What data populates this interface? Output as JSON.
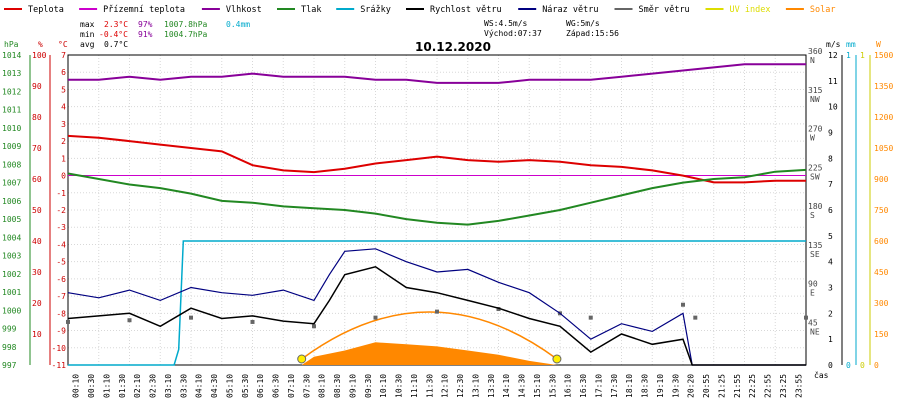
{
  "title": "10.12.2020",
  "legend": [
    {
      "label": "Teplota",
      "color": "#dd0000"
    },
    {
      "label": "Přízemní teplota",
      "color": "#cc00cc"
    },
    {
      "label": "Vlhkost",
      "color": "#880099"
    },
    {
      "label": "Tlak",
      "color": "#228822"
    },
    {
      "label": "Srážky",
      "color": "#00aacc"
    },
    {
      "label": "Rychlost větru",
      "color": "#000000"
    },
    {
      "label": "Náraz větru",
      "color": "#000080"
    },
    {
      "label": "Směr větru",
      "color": "#666666"
    },
    {
      "label": "UV index",
      "color": "#dddd00"
    },
    {
      "label": "Solar",
      "color": "#ff8800"
    }
  ],
  "stats": {
    "max_label": "max",
    "max_temp": "2.3°C",
    "max_hum": "97%",
    "max_press": "1007.8hPa",
    "max_rain": "0.4mm",
    "min_label": "min",
    "min_temp": "-0.4°C",
    "min_hum": "91%",
    "min_press": "1004.7hPa",
    "avg_label": "avg",
    "avg_temp": "0.7°C"
  },
  "wind_info": {
    "ws": "WS:4.5m/s",
    "wg": "WG:5m/s",
    "sunrise": "Východ:07:37",
    "sunset": "Západ:15:56"
  },
  "units": {
    "hpa": "hPa",
    "pct": "%",
    "degc": "°C",
    "ms": "m/s",
    "mm": "mm",
    "w": "W",
    "time": "čas"
  },
  "axes": {
    "hpa_ticks": [
      "1014",
      "1013",
      "1012",
      "1011",
      "1010",
      "1009",
      "1008",
      "1007",
      "1006",
      "1005",
      "1004",
      "1003",
      "1002",
      "1001",
      "1000",
      "999",
      "998",
      "997"
    ],
    "pct_ticks": [
      "100",
      "90",
      "80",
      "70",
      "60",
      "50",
      "40",
      "30",
      "20",
      "10"
    ],
    "degc_ticks": [
      "7",
      "6",
      "5",
      "4",
      "3",
      "2",
      "1",
      "0",
      "-1",
      "-2",
      "-3",
      "-4",
      "-5",
      "-6",
      "-7",
      "-8",
      "-9",
      "-10",
      "-11"
    ],
    "dir_ticks": [
      {
        "deg": "360",
        "dir": "N"
      },
      {
        "deg": "315",
        "dir": "NW"
      },
      {
        "deg": "270",
        "dir": "W"
      },
      {
        "deg": "225",
        "dir": "SW"
      },
      {
        "deg": "180",
        "dir": "S"
      },
      {
        "deg": "135",
        "dir": "SE"
      },
      {
        "deg": "90",
        "dir": "E"
      },
      {
        "deg": "45",
        "dir": "NE"
      }
    ],
    "ms_ticks": [
      "12",
      "11",
      "10",
      "9",
      "8",
      "7",
      "6",
      "5",
      "4",
      "3",
      "2",
      "1",
      "0"
    ],
    "mm_ticks": [
      "1",
      "0"
    ],
    "uv_ticks": [
      "1",
      "0"
    ],
    "w_ticks": [
      "1500",
      "1350",
      "1200",
      "1050",
      "900",
      "750",
      "600",
      "450",
      "300",
      "150",
      "0"
    ],
    "time_ticks": [
      "00:10",
      "00:30",
      "01:10",
      "01:30",
      "02:10",
      "02:30",
      "03:10",
      "03:30",
      "04:10",
      "04:30",
      "05:10",
      "05:30",
      "06:10",
      "06:30",
      "07:10",
      "07:30",
      "08:10",
      "08:30",
      "09:10",
      "09:30",
      "10:10",
      "10:30",
      "11:10",
      "11:30",
      "12:10",
      "12:30",
      "13:10",
      "13:30",
      "14:10",
      "14:30",
      "15:10",
      "15:30",
      "16:10",
      "16:30",
      "17:10",
      "17:30",
      "18:10",
      "18:30",
      "19:10",
      "19:30",
      "20:20",
      "20:55",
      "21:25",
      "21:55",
      "22:25",
      "22:55",
      "23:25",
      "23:55"
    ]
  },
  "chart_data": {
    "type": "line",
    "title": "10.12.2020",
    "x_unit": "time of day (hours)",
    "series": [
      {
        "name": "Teplota",
        "unit": "°C",
        "x": [
          0,
          1,
          2,
          3,
          4,
          5,
          6,
          7,
          8,
          9,
          10,
          11,
          12,
          13,
          14,
          15,
          16,
          17,
          18,
          19,
          20,
          21,
          22,
          23,
          24
        ],
        "values": [
          2.3,
          2.2,
          2.0,
          1.8,
          1.6,
          1.4,
          0.6,
          0.3,
          0.2,
          0.4,
          0.7,
          0.9,
          1.1,
          0.9,
          0.8,
          0.9,
          0.8,
          0.6,
          0.5,
          0.3,
          0.0,
          -0.4,
          -0.4,
          -0.3,
          -0.3
        ]
      },
      {
        "name": "Přízemní teplota",
        "unit": "°C",
        "x": [
          0,
          24
        ],
        "values": [
          0,
          0
        ]
      },
      {
        "name": "Vlhkost",
        "unit": "%",
        "x": [
          0,
          1,
          2,
          3,
          4,
          5,
          6,
          7,
          8,
          9,
          10,
          11,
          12,
          13,
          14,
          15,
          16,
          17,
          18,
          19,
          20,
          21,
          22,
          23,
          24
        ],
        "values": [
          92,
          92,
          93,
          92,
          93,
          93,
          94,
          93,
          93,
          93,
          92,
          92,
          91,
          91,
          91,
          92,
          92,
          92,
          93,
          94,
          95,
          96,
          97,
          97,
          97
        ]
      },
      {
        "name": "Tlak",
        "unit": "hPa",
        "x": [
          0,
          1,
          2,
          3,
          4,
          5,
          6,
          7,
          8,
          9,
          10,
          11,
          12,
          13,
          14,
          15,
          16,
          17,
          18,
          19,
          20,
          21,
          22,
          23,
          24
        ],
        "values": [
          1007.5,
          1007.2,
          1006.9,
          1006.7,
          1006.4,
          1006.0,
          1005.9,
          1005.7,
          1005.6,
          1005.5,
          1005.3,
          1005.0,
          1004.8,
          1004.7,
          1004.9,
          1005.2,
          1005.5,
          1005.9,
          1006.3,
          1006.7,
          1007.0,
          1007.2,
          1007.3,
          1007.6,
          1007.7
        ]
      },
      {
        "name": "Srážky",
        "unit": "mm",
        "x": [
          0,
          3.45,
          3.6,
          3.75,
          24
        ],
        "values": [
          0,
          0,
          0.05,
          0.4,
          0.4
        ]
      },
      {
        "name": "Rychlost větru",
        "unit": "m/s",
        "x": [
          0,
          1,
          2,
          3,
          4,
          5,
          6,
          7,
          8,
          8.5,
          9,
          10,
          11,
          12,
          13,
          14,
          15,
          16,
          17,
          18,
          19,
          20,
          20.3,
          24
        ],
        "values": [
          1.8,
          1.9,
          2.0,
          1.5,
          2.2,
          1.8,
          1.9,
          1.7,
          1.6,
          2.5,
          3.5,
          3.8,
          3.0,
          2.8,
          2.5,
          2.2,
          1.8,
          1.5,
          0.5,
          1.2,
          0.8,
          1.0,
          0,
          0
        ]
      },
      {
        "name": "Náraz větru",
        "unit": "m/s",
        "x": [
          0,
          1,
          2,
          3,
          4,
          5,
          6,
          7,
          8,
          8.5,
          9,
          10,
          11,
          12,
          13,
          14,
          15,
          16,
          17,
          18,
          19,
          20,
          20.3,
          24
        ],
        "values": [
          2.8,
          2.6,
          2.9,
          2.5,
          3.0,
          2.8,
          2.7,
          2.9,
          2.5,
          3.5,
          4.4,
          4.5,
          4.0,
          3.6,
          3.7,
          3.2,
          2.8,
          2.0,
          1.0,
          1.6,
          1.3,
          2.0,
          0,
          0
        ]
      },
      {
        "name": "Směr větru",
        "unit": "°",
        "x": [
          0,
          2,
          4,
          6,
          8,
          10,
          12,
          14,
          16,
          17,
          20,
          20.4,
          24
        ],
        "values": [
          50,
          52,
          55,
          50,
          45,
          55,
          62,
          65,
          60,
          55,
          70,
          55,
          55
        ]
      },
      {
        "name": "Solar",
        "unit": "W",
        "x": [
          7.6,
          8,
          9,
          10,
          11,
          12,
          13,
          14,
          15,
          15.9
        ],
        "values": [
          0,
          40,
          70,
          110,
          100,
          90,
          70,
          50,
          20,
          0
        ]
      }
    ],
    "ylim_temp": [
      -11,
      7
    ],
    "ylim_hum": [
      0,
      100
    ],
    "ylim_press": [
      997,
      1014
    ],
    "ylim_wind": [
      0,
      12
    ],
    "ylim_rain": [
      0,
      1
    ],
    "ylim_solar": [
      0,
      1500
    ],
    "ylim_dir": [
      0,
      360
    ],
    "xlim": [
      0,
      24
    ],
    "grid": true,
    "legend_placement": "top"
  }
}
